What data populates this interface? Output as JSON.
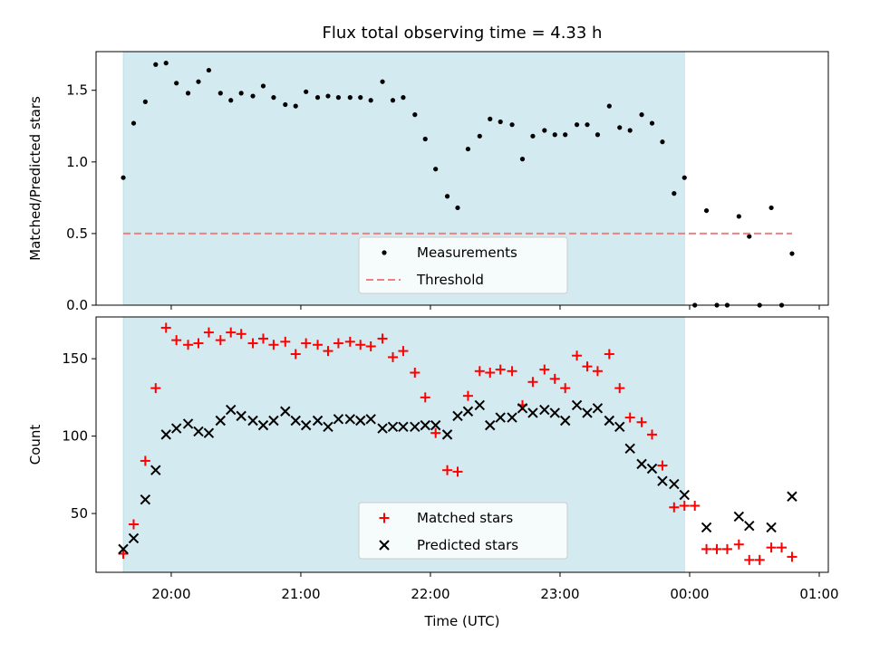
{
  "chart_data": {
    "type": "scatter",
    "title": "Flux total observing time = 4.33 h",
    "xlabel": "Time (UTC)",
    "x_ticks": [
      "20:00",
      "21:00",
      "22:00",
      "23:00",
      "00:00",
      "01:00"
    ],
    "x_range_hours": [
      19.42,
      25.07
    ],
    "observing_window_hours": [
      19.63,
      23.96
    ],
    "shade_color": "#d3eaf0",
    "panels": [
      {
        "id": "top",
        "ylabel": "Matched/Predicted stars",
        "ylim": [
          0.0,
          1.77
        ],
        "y_ticks": [
          0.0,
          0.5,
          1.0,
          1.5
        ],
        "y_tick_labels": [
          "0.0",
          "0.5",
          "1.0",
          "1.5"
        ],
        "legend_position": "bottom-center",
        "series": [
          {
            "name": "Measurements",
            "marker": "dot",
            "color": "#000000",
            "x": [
              19.63,
              19.71,
              19.8,
              19.88,
              19.96,
              20.04,
              20.13,
              20.21,
              20.29,
              20.38,
              20.46,
              20.54,
              20.63,
              20.71,
              20.79,
              20.88,
              20.96,
              21.04,
              21.13,
              21.21,
              21.29,
              21.38,
              21.46,
              21.54,
              21.63,
              21.71,
              21.79,
              21.88,
              21.96,
              22.04,
              22.13,
              22.21,
              22.29,
              22.38,
              22.46,
              22.54,
              22.63,
              22.71,
              22.79,
              22.88,
              22.96,
              23.04,
              23.13,
              23.21,
              23.29,
              23.38,
              23.46,
              23.54,
              23.63,
              23.71,
              23.79,
              23.88,
              23.96,
              24.04,
              24.13,
              24.21,
              24.29,
              24.38,
              24.46,
              24.54,
              24.63,
              24.71,
              24.79
            ],
            "y": [
              0.89,
              1.27,
              1.42,
              1.68,
              1.69,
              1.55,
              1.48,
              1.56,
              1.64,
              1.48,
              1.43,
              1.48,
              1.46,
              1.53,
              1.45,
              1.4,
              1.39,
              1.49,
              1.45,
              1.46,
              1.45,
              1.45,
              1.45,
              1.43,
              1.56,
              1.43,
              1.45,
              1.33,
              1.16,
              0.95,
              0.76,
              0.68,
              1.09,
              1.18,
              1.3,
              1.28,
              1.26,
              1.02,
              1.18,
              1.22,
              1.19,
              1.19,
              1.26,
              1.26,
              1.19,
              1.39,
              1.24,
              1.22,
              1.33,
              1.27,
              1.14,
              0.78,
              0.89,
              0.0,
              0.66,
              0.0,
              0.0,
              0.62,
              0.48,
              0.0,
              0.68,
              0.0,
              0.36
            ]
          },
          {
            "name": "Threshold",
            "marker": "dashed-line",
            "color": "#f08080",
            "x": [
              19.63,
              24.79
            ],
            "y": [
              0.5,
              0.5
            ]
          }
        ]
      },
      {
        "id": "bottom",
        "ylabel": "Count",
        "ylim": [
          12,
          177
        ],
        "y_ticks": [
          50,
          100,
          150
        ],
        "y_tick_labels": [
          "50",
          "100",
          "150"
        ],
        "legend_position": "bottom-center",
        "series": [
          {
            "name": "Matched stars",
            "marker": "plus",
            "color": "#ff0000",
            "x": [
              19.63,
              19.71,
              19.8,
              19.88,
              19.96,
              20.04,
              20.13,
              20.21,
              20.29,
              20.38,
              20.46,
              20.54,
              20.63,
              20.71,
              20.79,
              20.88,
              20.96,
              21.04,
              21.13,
              21.21,
              21.29,
              21.38,
              21.46,
              21.54,
              21.63,
              21.71,
              21.79,
              21.88,
              21.96,
              22.04,
              22.13,
              22.21,
              22.29,
              22.38,
              22.46,
              22.54,
              22.63,
              22.71,
              22.79,
              22.88,
              22.96,
              23.04,
              23.13,
              23.21,
              23.29,
              23.38,
              23.46,
              23.54,
              23.63,
              23.71,
              23.79,
              23.88,
              23.96,
              24.04,
              24.13,
              24.21,
              24.29,
              24.38,
              24.46,
              24.54,
              24.63,
              24.71,
              24.79
            ],
            "y": [
              24,
              43,
              84,
              131,
              170,
              162,
              159,
              160,
              167,
              162,
              167,
              166,
              160,
              163,
              159,
              161,
              153,
              160,
              159,
              155,
              160,
              161,
              159,
              158,
              163,
              151,
              155,
              141,
              125,
              102,
              78,
              77,
              126,
              142,
              141,
              143,
              142,
              120,
              135,
              143,
              137,
              131,
              152,
              145,
              142,
              153,
              131,
              112,
              109,
              101,
              81,
              54,
              55,
              55,
              27,
              27,
              27,
              30,
              20,
              20,
              28,
              28,
              22
            ]
          },
          {
            "name": "Predicted stars",
            "marker": "x",
            "color": "#000000",
            "x": [
              19.63,
              19.71,
              19.8,
              19.88,
              19.96,
              20.04,
              20.13,
              20.21,
              20.29,
              20.38,
              20.46,
              20.54,
              20.63,
              20.71,
              20.79,
              20.88,
              20.96,
              21.04,
              21.13,
              21.21,
              21.29,
              21.38,
              21.46,
              21.54,
              21.63,
              21.71,
              21.79,
              21.88,
              21.96,
              22.04,
              22.13,
              22.21,
              22.29,
              22.38,
              22.46,
              22.54,
              22.63,
              22.71,
              22.79,
              22.88,
              22.96,
              23.04,
              23.13,
              23.21,
              23.29,
              23.38,
              23.46,
              23.54,
              23.63,
              23.71,
              23.79,
              23.88,
              23.96,
              24.13,
              24.38,
              24.46,
              24.63,
              24.79
            ],
            "y": [
              27,
              34,
              59,
              78,
              101,
              105,
              108,
              103,
              102,
              110,
              117,
              113,
              110,
              107,
              110,
              116,
              110,
              107,
              110,
              106,
              111,
              111,
              110,
              111,
              105,
              106,
              106,
              106,
              107,
              107,
              101,
              113,
              116,
              120,
              107,
              112,
              112,
              118,
              115,
              117,
              115,
              110,
              120,
              115,
              118,
              110,
              106,
              92,
              82,
              79,
              71,
              69,
              62,
              41,
              48,
              42,
              41,
              61
            ]
          }
        ]
      }
    ]
  }
}
